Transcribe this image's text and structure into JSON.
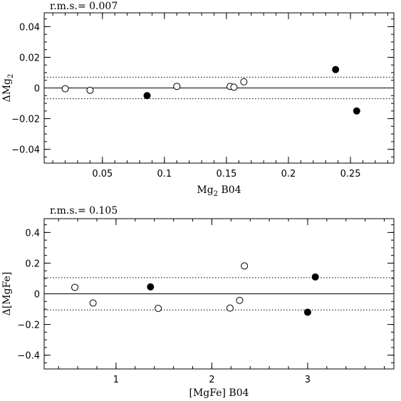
{
  "chart_data": [
    {
      "type": "scatter",
      "rms_text": "r.m.s.= 0.007",
      "xlabel_main": "Mg",
      "xlabel_sub": "2",
      "xlabel_rest": " B04",
      "ylabel_main": "ΔMg",
      "ylabel_sub": "2",
      "xlim": [
        0.003,
        0.285
      ],
      "ylim": [
        -0.049,
        0.049
      ],
      "xticks": [
        0.05,
        0.1,
        0.15,
        0.2,
        0.25
      ],
      "xtick_labels": [
        "0.05",
        "0.1",
        "0.15",
        "0.2",
        "0.25"
      ],
      "yticks": [
        -0.04,
        -0.02,
        0,
        0.02,
        0.04
      ],
      "ytick_labels": [
        "−0.04",
        "−0.02",
        "0",
        "0.02",
        "0.04"
      ],
      "zero_line": 0,
      "rms_lines": [
        0.007,
        -0.007
      ],
      "series": [
        {
          "marker": "open-circle",
          "points": [
            [
              0.02,
              -0.0005
            ],
            [
              0.04,
              -0.0015
            ],
            [
              0.11,
              0.001
            ],
            [
              0.153,
              0.001
            ],
            [
              0.156,
              0.0005
            ],
            [
              0.164,
              0.004
            ]
          ]
        },
        {
          "marker": "filled-circle",
          "points": [
            [
              0.086,
              -0.005
            ],
            [
              0.238,
              0.012
            ],
            [
              0.255,
              -0.015
            ]
          ]
        }
      ]
    },
    {
      "type": "scatter",
      "rms_text": "r.m.s.= 0.105",
      "xlabel_main": "[MgFe]",
      "xlabel_sub": "",
      "xlabel_rest": " B04",
      "ylabel_main": "Δ[MgFe]",
      "ylabel_sub": "",
      "xlim": [
        0.25,
        3.9
      ],
      "ylim": [
        -0.49,
        0.49
      ],
      "xticks": [
        1,
        2,
        3
      ],
      "xtick_labels": [
        "1",
        "2",
        "3"
      ],
      "yticks": [
        -0.4,
        -0.2,
        0,
        0.2,
        0.4
      ],
      "ytick_labels": [
        "−0.4",
        "−0.2",
        "0",
        "0.2",
        "0.4"
      ],
      "zero_line": 0,
      "rms_lines": [
        0.105,
        -0.105
      ],
      "series": [
        {
          "marker": "open-circle",
          "points": [
            [
              0.57,
              0.042
            ],
            [
              0.76,
              -0.06
            ],
            [
              1.44,
              -0.095
            ],
            [
              2.19,
              -0.093
            ],
            [
              2.29,
              -0.043
            ],
            [
              2.34,
              0.182
            ]
          ]
        },
        {
          "marker": "filled-circle",
          "points": [
            [
              1.36,
              0.045
            ],
            [
              3.0,
              -0.12
            ],
            [
              3.08,
              0.11
            ]
          ]
        }
      ]
    }
  ]
}
